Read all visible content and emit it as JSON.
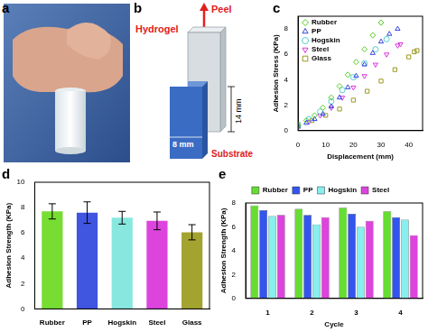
{
  "panel_labels": [
    "a",
    "b",
    "c",
    "d",
    "e"
  ],
  "diagram": {
    "peel": "Peel",
    "hydrogel": "Hydrogel",
    "length": "14 mm",
    "width": "8 mm",
    "substrate": "Substrate"
  },
  "chart_data": [
    {
      "type": "scatter",
      "x_label": "Displacement (mm)",
      "y_label": "Adhesion Stress (KPa)",
      "xlim": [
        0,
        45
      ],
      "xticks": [
        0,
        10,
        20,
        30,
        40
      ],
      "ylim": [
        0,
        9
      ],
      "yticks": [
        0,
        2,
        4,
        6,
        8
      ],
      "grid": false,
      "legend": "upper left",
      "series": [
        {
          "name": "Rubber",
          "color": "#55cc22",
          "marker": "diamond",
          "x": [
            0,
            3,
            6,
            9,
            12,
            15,
            18,
            21,
            24,
            27,
            30
          ],
          "values": [
            0.4,
            0.8,
            1.2,
            1.8,
            2.6,
            3.5,
            4.4,
            5.4,
            6.4,
            7.5,
            8.5
          ]
        },
        {
          "name": "PP",
          "color": "#3344dd",
          "marker": "triangle",
          "x": [
            0,
            3,
            6,
            9,
            12,
            15,
            18,
            21,
            24,
            27,
            30,
            33,
            36
          ],
          "values": [
            0.3,
            0.6,
            0.9,
            1.3,
            1.9,
            2.6,
            3.4,
            4.3,
            5.2,
            6.1,
            7.0,
            7.6,
            8.0
          ]
        },
        {
          "name": "Hogskin",
          "color": "#55cccc",
          "marker": "circle",
          "x": [
            0,
            4,
            8,
            12,
            16,
            20,
            24,
            28,
            32
          ],
          "values": [
            0.4,
            0.9,
            1.5,
            2.3,
            3.2,
            4.2,
            5.3,
            6.4,
            7.2
          ]
        },
        {
          "name": "Steel",
          "color": "#dd33dd",
          "marker": "triangle_down",
          "x": [
            0,
            4,
            8,
            12,
            16,
            20,
            24,
            28,
            32,
            36,
            37
          ],
          "values": [
            0.3,
            0.7,
            1.2,
            1.8,
            2.6,
            3.4,
            4.3,
            5.2,
            6.0,
            6.7,
            6.8
          ]
        },
        {
          "name": "Glass",
          "color": "#999922",
          "marker": "square",
          "x": [
            0,
            5,
            10,
            15,
            20,
            25,
            30,
            35,
            40,
            42,
            43
          ],
          "values": [
            0.5,
            0.8,
            1.2,
            1.7,
            2.4,
            3.1,
            3.9,
            4.8,
            5.8,
            6.2,
            6.3
          ]
        }
      ]
    },
    {
      "type": "bar",
      "y_label": "Adhesion Strength (KPa)",
      "categories": [
        "Rubber",
        "PP",
        "Hogskin",
        "Steel",
        "Glass"
      ],
      "values": [
        7.7,
        7.6,
        7.2,
        6.95,
        6.05
      ],
      "errors": [
        0.6,
        0.85,
        0.5,
        0.7,
        0.6
      ],
      "colors": [
        "#77dd33",
        "#4055e0",
        "#88e8e0",
        "#dd44dd",
        "#a3a330"
      ],
      "ylim": [
        0,
        10
      ],
      "yticks": [
        0,
        2,
        4,
        6,
        8,
        10
      ],
      "grid": false
    },
    {
      "type": "bar",
      "x_label": "Cycle",
      "y_label": "Adhesion Strength (KPa)",
      "categories": [
        "1",
        "2",
        "3",
        "4"
      ],
      "ylim": [
        0,
        8
      ],
      "yticks": [
        0,
        2,
        4,
        6,
        8
      ],
      "grid": false,
      "legend": "top",
      "series": [
        {
          "name": "Rubber",
          "color": "#66dd33",
          "values": [
            7.8,
            7.5,
            7.6,
            7.3
          ]
        },
        {
          "name": "PP",
          "color": "#3355ee",
          "values": [
            7.4,
            7.0,
            7.1,
            6.8
          ]
        },
        {
          "name": "Hogskin",
          "color": "#88eeee",
          "values": [
            6.9,
            6.2,
            6.0,
            6.6
          ]
        },
        {
          "name": "Steel",
          "color": "#dd44dd",
          "values": [
            7.0,
            6.8,
            6.5,
            5.3
          ]
        }
      ]
    }
  ]
}
